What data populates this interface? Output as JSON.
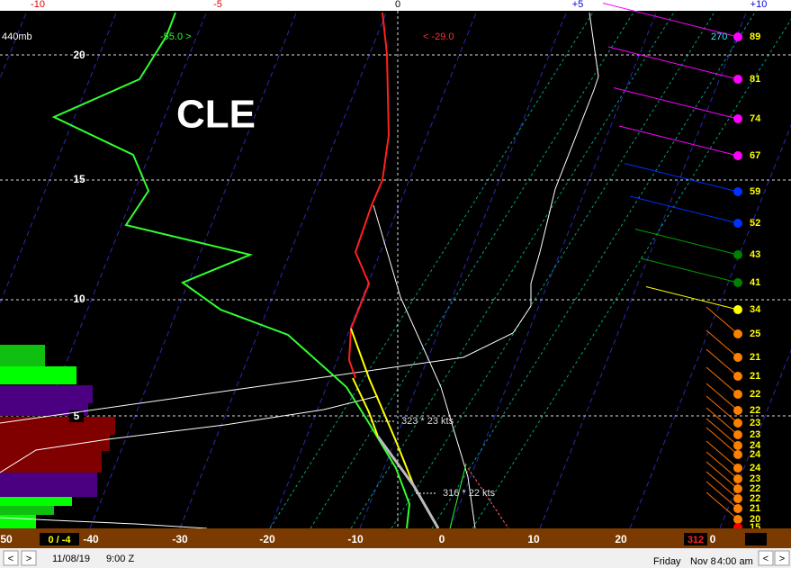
{
  "top_axis": [
    "-10",
    "-5",
    "0",
    "+5",
    "+10"
  ],
  "pressure_label": "440mb",
  "station": "CLE",
  "left_marker": "-55.0 >",
  "right_marker": "< -29.0",
  "wind_direction_top": "270",
  "height_labels": [
    "20",
    "15",
    "10",
    "5"
  ],
  "storm_motion": [
    "323 * 23 kts",
    "316 * 22 kts"
  ],
  "winds": [
    "89",
    "81",
    "74",
    "67",
    "59",
    "52",
    "43",
    "41",
    "34",
    "25",
    "21",
    "21",
    "22",
    "22",
    "23",
    "23",
    "24",
    "24",
    "24",
    "23",
    "22",
    "22",
    "21",
    "20",
    "15",
    "14"
  ],
  "bottom_axis": [
    "50",
    "0 / -4",
    "-40",
    "-30",
    "-20",
    "-10",
    "0",
    "10",
    "20",
    "312",
    "0"
  ],
  "status_bar": {
    "prev": "<",
    "next": ">",
    "date": "11/08/19",
    "time": "9:00 Z",
    "day": "Friday",
    "local_date": "Nov 8",
    "local_time": "4:00 am",
    "prev2": "<",
    "next2": ">"
  }
}
